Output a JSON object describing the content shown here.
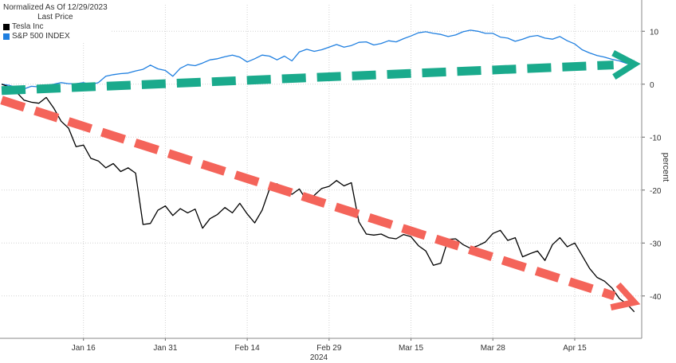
{
  "legend": {
    "header_line1": "Normalized As Of 12/29/2023",
    "header_line2": "Last Price",
    "items": [
      {
        "label": "Tesla Inc",
        "color": "#000000"
      },
      {
        "label": "S&P 500 INDEX",
        "color": "#1f7fe0"
      }
    ]
  },
  "chart_data": {
    "type": "line",
    "ylabel": "percent",
    "ylim": [
      -48,
      15
    ],
    "yticks": [
      10,
      0,
      -10,
      -20,
      -30,
      -40
    ],
    "xlim": [
      0,
      86
    ],
    "x_ticks": [
      {
        "x": 11,
        "label": "Jan 16"
      },
      {
        "x": 22,
        "label": "Jan 31"
      },
      {
        "x": 33,
        "label": "Feb 14"
      },
      {
        "x": 44,
        "label": "Feb 29"
      },
      {
        "x": 55,
        "label": "Mar 15"
      },
      {
        "x": 66,
        "label": "Mar 28"
      },
      {
        "x": 77,
        "label": "Apr 15"
      }
    ],
    "x_year_label": "2024",
    "grid": true,
    "series": [
      {
        "name": "S&P 500 INDEX",
        "color": "#1f7fe0",
        "points": [
          [
            0,
            0
          ],
          [
            1,
            -0.2
          ],
          [
            2,
            -0.6
          ],
          [
            3,
            -0.9
          ],
          [
            4,
            -0.4
          ],
          [
            5,
            -0.5
          ],
          [
            6,
            -0.2
          ],
          [
            7,
            0
          ],
          [
            8,
            0.3
          ],
          [
            9,
            0.1
          ],
          [
            10,
            0.1
          ],
          [
            11,
            0.3
          ],
          [
            12,
            -0.1
          ],
          [
            13,
            0.3
          ],
          [
            14,
            1.5
          ],
          [
            15,
            1.8
          ],
          [
            16,
            2.0
          ],
          [
            17,
            2.1
          ],
          [
            18,
            2.5
          ],
          [
            19,
            2.8
          ],
          [
            20,
            3.6
          ],
          [
            21,
            2.9
          ],
          [
            22,
            2.6
          ],
          [
            23,
            1.5
          ],
          [
            24,
            3.0
          ],
          [
            25,
            3.7
          ],
          [
            26,
            3.5
          ],
          [
            27,
            4.0
          ],
          [
            28,
            4.6
          ],
          [
            29,
            4.8
          ],
          [
            30,
            5.2
          ],
          [
            31,
            5.5
          ],
          [
            32,
            5.1
          ],
          [
            33,
            4.2
          ],
          [
            34,
            4.8
          ],
          [
            35,
            5.5
          ],
          [
            36,
            5.3
          ],
          [
            37,
            4.6
          ],
          [
            38,
            5.3
          ],
          [
            39,
            4.4
          ],
          [
            40,
            6.1
          ],
          [
            41,
            6.6
          ],
          [
            42,
            6.2
          ],
          [
            43,
            6.5
          ],
          [
            44,
            7.0
          ],
          [
            45,
            7.5
          ],
          [
            46,
            7.0
          ],
          [
            47,
            7.3
          ],
          [
            48,
            7.9
          ],
          [
            49,
            8.0
          ],
          [
            50,
            7.4
          ],
          [
            51,
            7.7
          ],
          [
            52,
            8.2
          ],
          [
            53,
            8.0
          ],
          [
            54,
            8.6
          ],
          [
            55,
            9.1
          ],
          [
            56,
            9.7
          ],
          [
            57,
            9.9
          ],
          [
            58,
            9.6
          ],
          [
            59,
            9.4
          ],
          [
            60,
            9.0
          ],
          [
            61,
            9.3
          ],
          [
            62,
            9.9
          ],
          [
            63,
            10.2
          ],
          [
            64,
            10.0
          ],
          [
            65,
            9.6
          ],
          [
            66,
            9.6
          ],
          [
            67,
            8.9
          ],
          [
            68,
            8.7
          ],
          [
            69,
            8.1
          ],
          [
            70,
            8.5
          ],
          [
            71,
            9.0
          ],
          [
            72,
            9.2
          ],
          [
            73,
            8.7
          ],
          [
            74,
            8.5
          ],
          [
            75,
            9.0
          ],
          [
            76,
            8.2
          ],
          [
            77,
            7.6
          ],
          [
            78,
            6.5
          ],
          [
            79,
            5.9
          ],
          [
            80,
            5.4
          ],
          [
            81,
            5.1
          ],
          [
            82,
            4.7
          ],
          [
            83,
            4.4
          ],
          [
            84,
            3.9
          ],
          [
            85,
            4.5
          ]
        ]
      },
      {
        "name": "Tesla Inc",
        "color": "#000000",
        "points": [
          [
            0,
            0
          ],
          [
            1,
            -0.5
          ],
          [
            2,
            -1.5
          ],
          [
            3,
            -3.0
          ],
          [
            4,
            -3.4
          ],
          [
            5,
            -3.6
          ],
          [
            6,
            -2.5
          ],
          [
            7,
            -4.5
          ],
          [
            8,
            -7.0
          ],
          [
            9,
            -8.3
          ],
          [
            10,
            -11.8
          ],
          [
            11,
            -11.5
          ],
          [
            12,
            -14.0
          ],
          [
            13,
            -14.5
          ],
          [
            14,
            -15.8
          ],
          [
            15,
            -15.0
          ],
          [
            16,
            -16.5
          ],
          [
            17,
            -15.8
          ],
          [
            18,
            -16.8
          ],
          [
            19,
            -26.5
          ],
          [
            20,
            -26.3
          ],
          [
            21,
            -23.8
          ],
          [
            22,
            -23.0
          ],
          [
            23,
            -24.8
          ],
          [
            24,
            -23.5
          ],
          [
            25,
            -24.3
          ],
          [
            26,
            -23.6
          ],
          [
            27,
            -27.2
          ],
          [
            28,
            -25.4
          ],
          [
            29,
            -24.6
          ],
          [
            30,
            -23.3
          ],
          [
            31,
            -24.3
          ],
          [
            32,
            -22.5
          ],
          [
            33,
            -24.5
          ],
          [
            34,
            -26.2
          ],
          [
            35,
            -23.8
          ],
          [
            36,
            -19.8
          ],
          [
            37,
            -18.8
          ],
          [
            38,
            -20.0
          ],
          [
            39,
            -20.8
          ],
          [
            40,
            -19.8
          ],
          [
            41,
            -22.0
          ],
          [
            42,
            -21.0
          ],
          [
            43,
            -19.7
          ],
          [
            44,
            -19.3
          ],
          [
            45,
            -18.2
          ],
          [
            46,
            -19.2
          ],
          [
            47,
            -18.6
          ],
          [
            48,
            -26.0
          ],
          [
            49,
            -28.3
          ],
          [
            50,
            -28.5
          ],
          [
            51,
            -28.3
          ],
          [
            52,
            -29.0
          ],
          [
            53,
            -29.2
          ],
          [
            54,
            -28.4
          ],
          [
            55,
            -28.8
          ],
          [
            56,
            -30.5
          ],
          [
            57,
            -31.5
          ],
          [
            58,
            -34.2
          ],
          [
            59,
            -33.8
          ],
          [
            60,
            -29.3
          ],
          [
            61,
            -29.2
          ],
          [
            62,
            -30.3
          ],
          [
            63,
            -31.0
          ],
          [
            64,
            -30.5
          ],
          [
            65,
            -29.8
          ],
          [
            66,
            -28.2
          ],
          [
            67,
            -27.6
          ],
          [
            68,
            -29.5
          ],
          [
            69,
            -29.0
          ],
          [
            70,
            -32.6
          ],
          [
            71,
            -32.0
          ],
          [
            72,
            -31.5
          ],
          [
            73,
            -33.3
          ],
          [
            74,
            -30.3
          ],
          [
            75,
            -29.0
          ],
          [
            76,
            -30.7
          ],
          [
            77,
            -30.0
          ],
          [
            78,
            -32.4
          ],
          [
            79,
            -34.8
          ],
          [
            80,
            -36.5
          ],
          [
            81,
            -37.2
          ],
          [
            82,
            -38.5
          ],
          [
            83,
            -40.5
          ],
          [
            84,
            -41.5
          ],
          [
            85,
            -43.0
          ]
        ]
      }
    ],
    "annotations": [
      {
        "type": "dashed-arrow",
        "color": "#1aaa8c",
        "from": [
          0,
          -1.2
        ],
        "to": [
          85,
          3.8
        ]
      },
      {
        "type": "dashed-arrow",
        "color": "#f4645a",
        "from": [
          0,
          -3.0
        ],
        "to": [
          85,
          -41.2
        ]
      }
    ]
  }
}
